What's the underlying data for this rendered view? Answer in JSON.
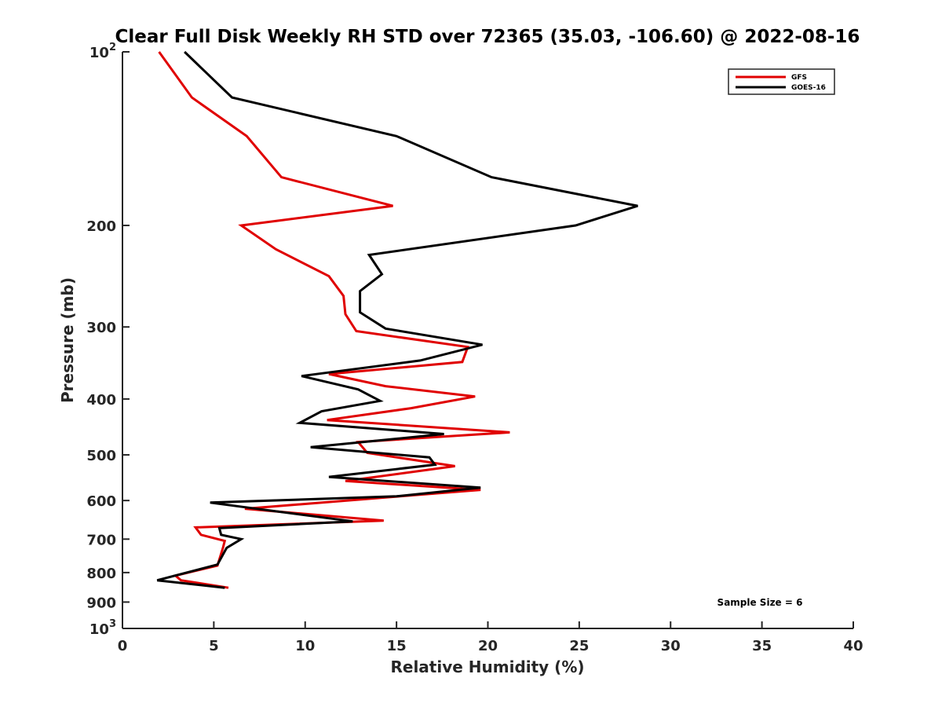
{
  "chart_data": {
    "type": "line",
    "title": "Clear Full Disk Weekly RH STD over 72365 (35.03, -106.60) @ 2022-08-16",
    "xlabel": "Relative Humidity (%)",
    "ylabel": "Pressure (mb)",
    "xlim": [
      0,
      40
    ],
    "ylim": [
      100,
      1000
    ],
    "y_scale": "log",
    "y_reversed": true,
    "grid": false,
    "legend_position": "top-right",
    "x_ticks": [
      "0",
      "5",
      "10",
      "15",
      "20",
      "25",
      "30",
      "35",
      "40"
    ],
    "y_ticks": [
      {
        "value": 100,
        "base": "10",
        "exp": "2"
      },
      {
        "value": 200,
        "label": "200"
      },
      {
        "value": 300,
        "label": "300"
      },
      {
        "value": 400,
        "label": "400"
      },
      {
        "value": 500,
        "label": "500"
      },
      {
        "value": 600,
        "label": "600"
      },
      {
        "value": 700,
        "label": "700"
      },
      {
        "value": 800,
        "label": "800"
      },
      {
        "value": 900,
        "label": "900"
      },
      {
        "value": 1000,
        "base": "10",
        "exp": "3"
      }
    ],
    "series": [
      {
        "name": "GFS",
        "color": "#e00000",
        "points": [
          [
            2.0,
            100
          ],
          [
            3.8,
            120
          ],
          [
            6.8,
            140
          ],
          [
            8.7,
            165
          ],
          [
            14.8,
            185
          ],
          [
            6.5,
            200
          ],
          [
            8.4,
            220
          ],
          [
            11.3,
            245
          ],
          [
            12.1,
            265
          ],
          [
            12.2,
            285
          ],
          [
            12.8,
            305
          ],
          [
            18.9,
            325
          ],
          [
            18.6,
            345
          ],
          [
            11.3,
            362
          ],
          [
            14.4,
            380
          ],
          [
            19.3,
            396
          ],
          [
            15.8,
            415
          ],
          [
            11.2,
            435
          ],
          [
            21.2,
            457
          ],
          [
            12.9,
            475
          ],
          [
            13.4,
            496
          ],
          [
            18.2,
            523
          ],
          [
            12.2,
            555
          ],
          [
            19.6,
            575
          ],
          [
            14.6,
            592
          ],
          [
            6.7,
            620
          ],
          [
            14.3,
            650
          ],
          [
            4.0,
            668
          ],
          [
            4.3,
            688
          ],
          [
            5.6,
            705
          ],
          [
            5.5,
            725
          ],
          [
            5.2,
            778
          ],
          [
            2.9,
            810
          ],
          [
            3.2,
            825
          ],
          [
            5.8,
            850
          ]
        ]
      },
      {
        "name": "GOES-16",
        "color": "#000000",
        "points": [
          [
            3.4,
            100
          ],
          [
            6.0,
            120
          ],
          [
            15.0,
            140
          ],
          [
            20.2,
            165
          ],
          [
            28.2,
            185
          ],
          [
            24.8,
            200
          ],
          [
            13.5,
            225
          ],
          [
            14.2,
            243
          ],
          [
            13.0,
            260
          ],
          [
            13.0,
            283
          ],
          [
            14.4,
            302
          ],
          [
            19.7,
            322
          ],
          [
            16.3,
            343
          ],
          [
            9.8,
            365
          ],
          [
            12.9,
            385
          ],
          [
            14.1,
            403
          ],
          [
            10.9,
            420
          ],
          [
            9.7,
            440
          ],
          [
            17.6,
            460
          ],
          [
            10.3,
            485
          ],
          [
            16.8,
            505
          ],
          [
            17.1,
            520
          ],
          [
            11.3,
            546
          ],
          [
            19.6,
            570
          ],
          [
            15.0,
            590
          ],
          [
            4.8,
            605
          ],
          [
            12.6,
            652
          ],
          [
            5.3,
            670
          ],
          [
            5.4,
            688
          ],
          [
            6.5,
            700
          ],
          [
            5.7,
            725
          ],
          [
            5.2,
            775
          ],
          [
            1.9,
            825
          ],
          [
            5.6,
            850
          ]
        ]
      }
    ],
    "annotations": [
      {
        "text": "Sample Size = 6",
        "position": "bottom-right"
      }
    ]
  }
}
